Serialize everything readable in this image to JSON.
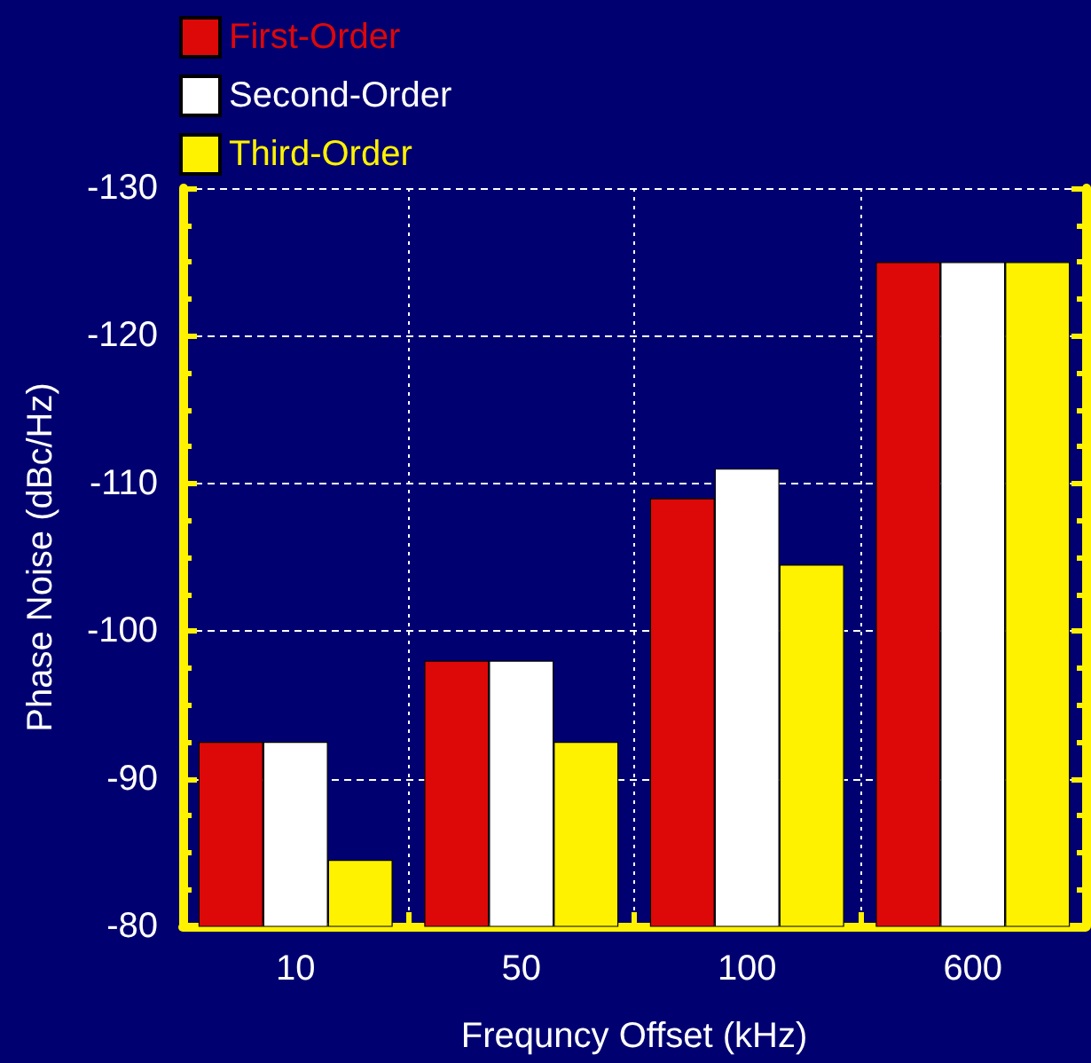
{
  "chart_data": {
    "type": "bar",
    "xlabel": "Frequncy Offset (kHz)",
    "ylabel": "Phase Noise (dBc/Hz)",
    "categories": [
      "10",
      "50",
      "100",
      "600"
    ],
    "series": [
      {
        "name": "First-Order",
        "color": "#dd0808",
        "values": [
          -92.5,
          -98,
          -109,
          -125
        ]
      },
      {
        "name": "Second-Order",
        "color": "#ffffff",
        "values": [
          -92.5,
          -98,
          -111,
          -125
        ]
      },
      {
        "name": "Third-Order",
        "color": "#fff200",
        "values": [
          -84.5,
          -92.5,
          -104.5,
          -125
        ]
      }
    ],
    "ylim": [
      -80,
      -130
    ],
    "yticks": [
      -80,
      -90,
      -100,
      -110,
      -120,
      -130
    ],
    "grid": true,
    "legend": "top left"
  }
}
